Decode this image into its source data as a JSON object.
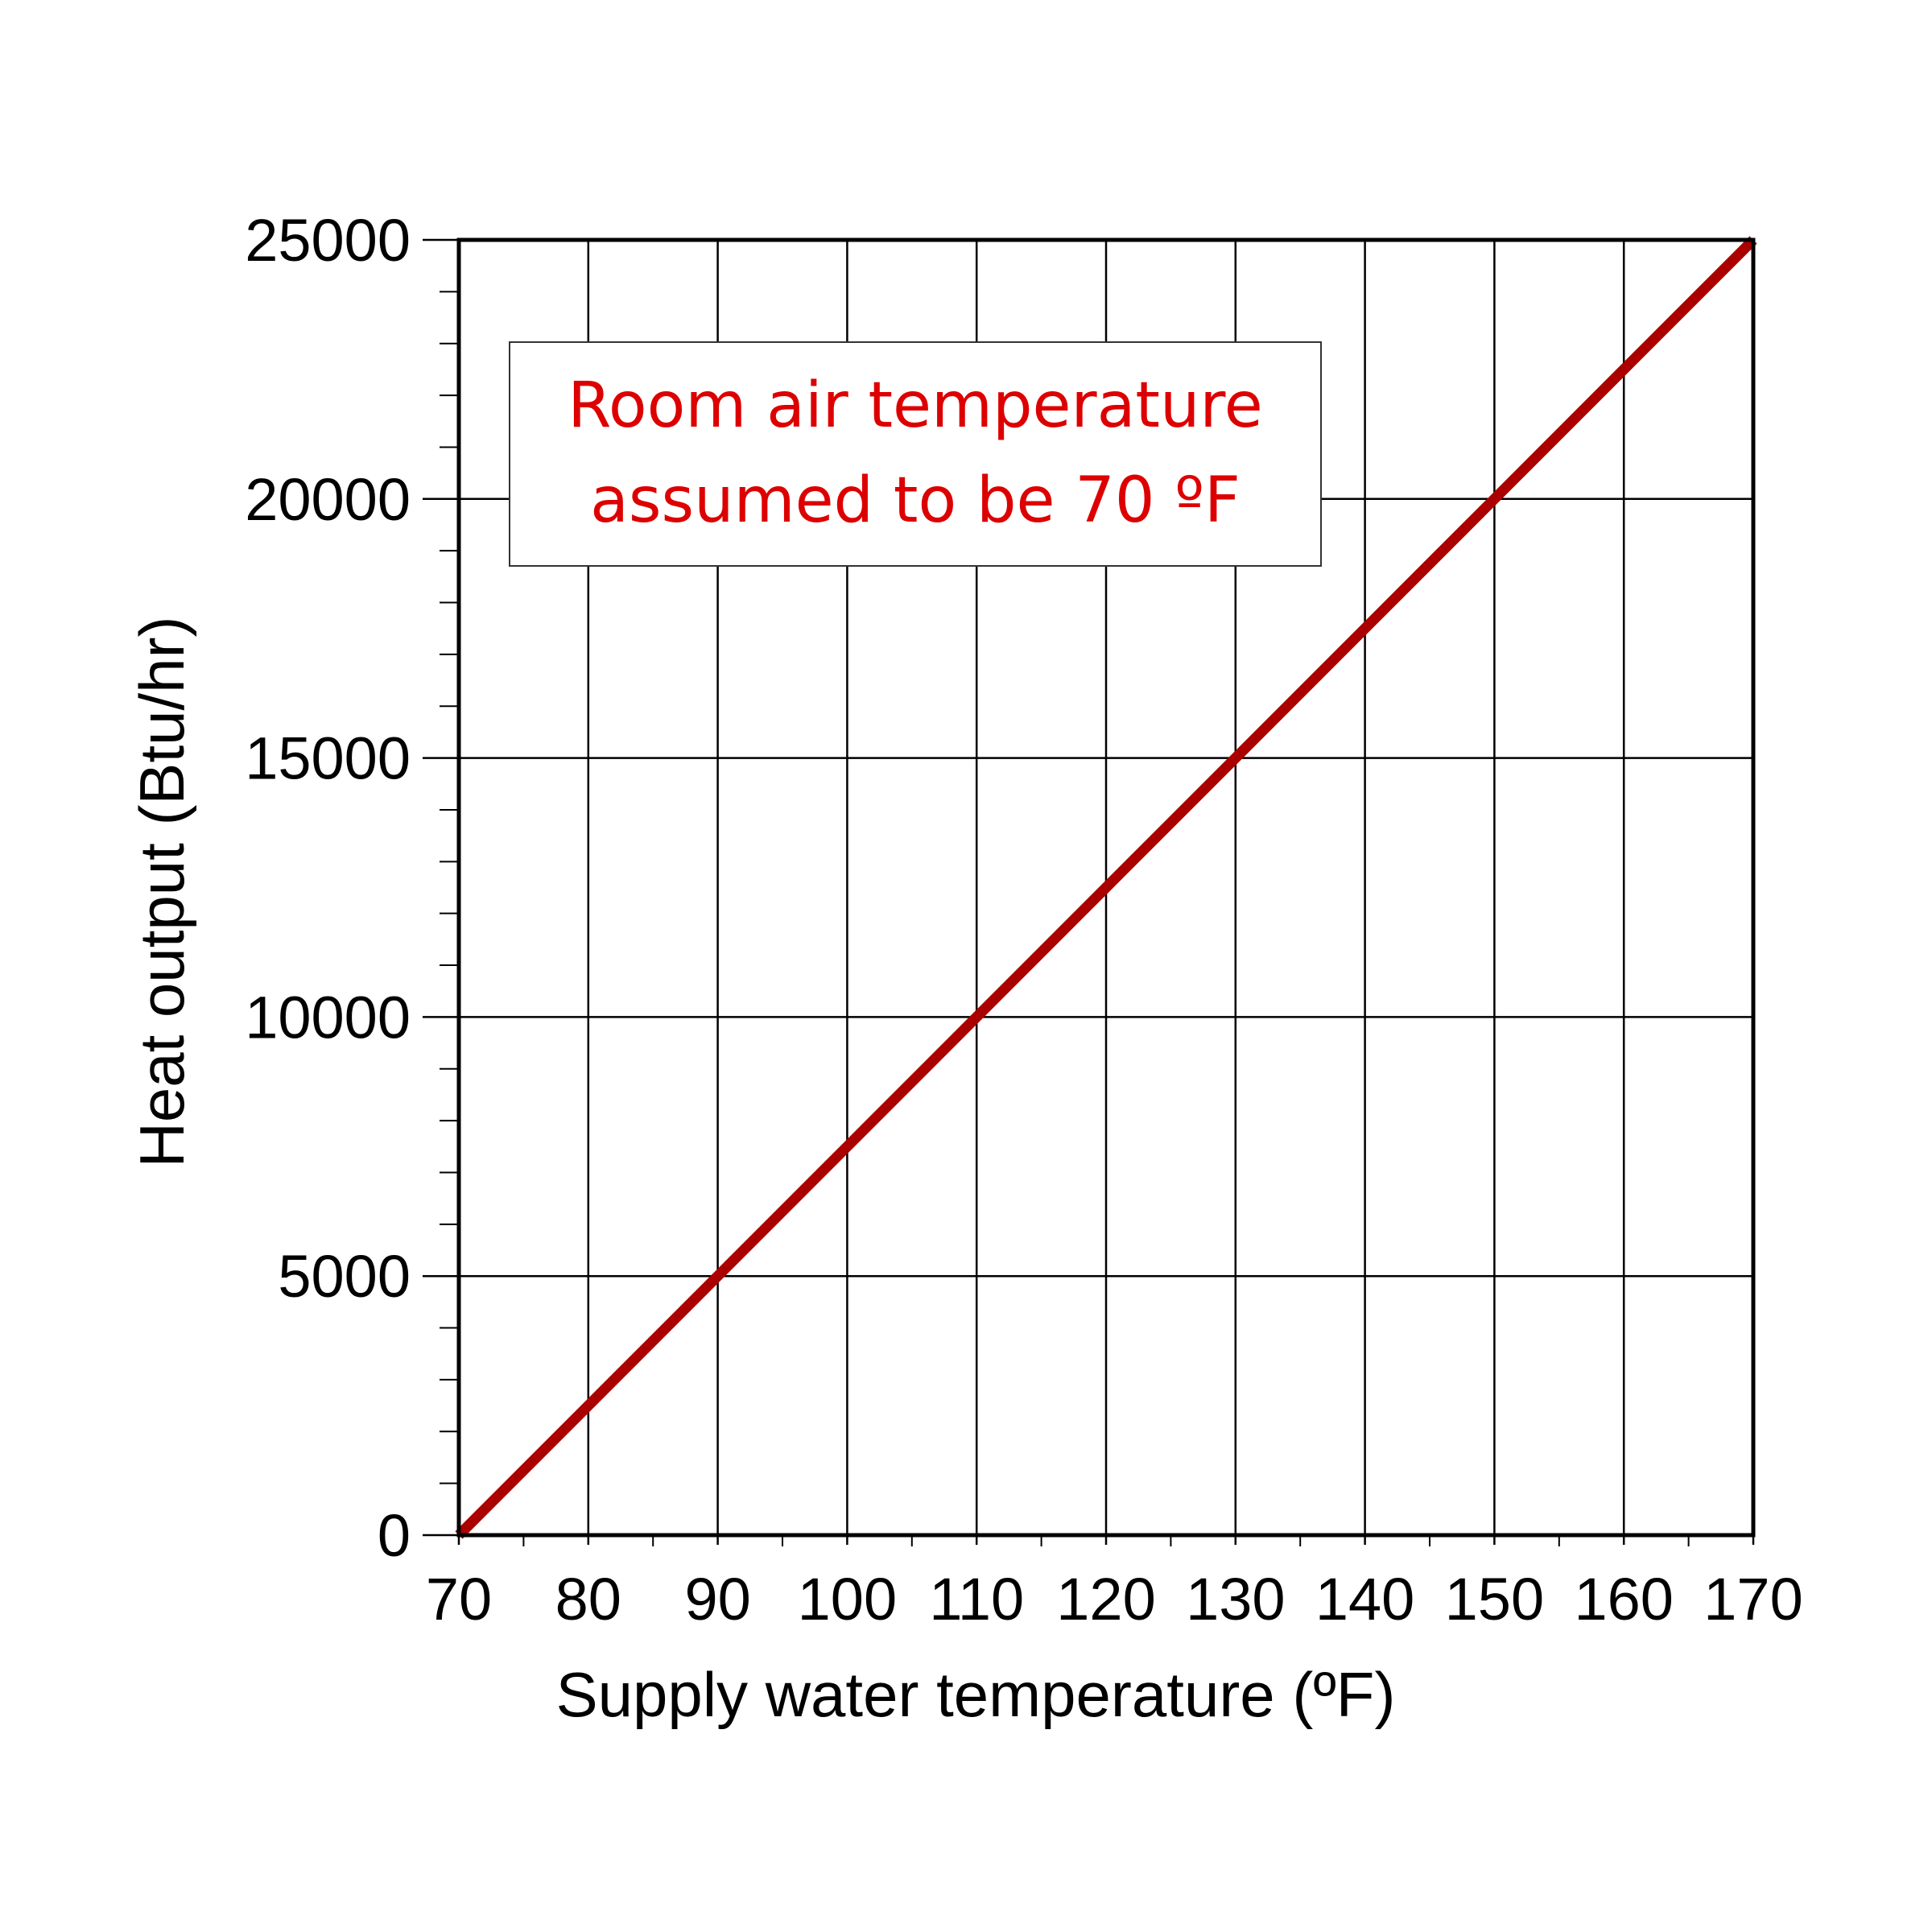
{
  "chart_data": {
    "type": "line",
    "title": "",
    "xlabel": "Supply water temperature (ºF)",
    "ylabel": "Heat output (Btu/hr)",
    "xlim": [
      70,
      170
    ],
    "ylim": [
      0,
      25000
    ],
    "x_ticks": [
      "70",
      "80",
      "90",
      "100",
      "110",
      "120",
      "130",
      "140",
      "150",
      "160",
      "170"
    ],
    "y_ticks": [
      "0",
      "5000",
      "10000",
      "15000",
      "20000",
      "25000"
    ],
    "grid": true,
    "series": [
      {
        "x": [
          70,
          80,
          90,
          100,
          110,
          120,
          130,
          140,
          150,
          160,
          170
        ],
        "y": [
          0,
          2500,
          5000,
          7500,
          10000,
          12500,
          15000,
          17500,
          20000,
          22500,
          25000
        ],
        "color": "#aa0000"
      }
    ],
    "annotation": {
      "lines": [
        "Room air temperature",
        "assumed to be 70 ºF"
      ],
      "color": "#dd0000"
    }
  }
}
